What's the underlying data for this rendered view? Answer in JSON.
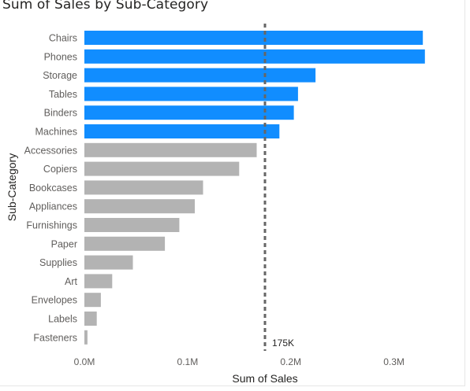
{
  "chart_data": {
    "type": "bar",
    "orientation": "horizontal",
    "title": "Sum of Sales by Sub-Category",
    "xlabel": "Sum of Sales",
    "ylabel": "Sub-Category",
    "categories": [
      "Chairs",
      "Phones",
      "Storage",
      "Tables",
      "Binders",
      "Machines",
      "Accessories",
      "Copiers",
      "Bookcases",
      "Appliances",
      "Furnishings",
      "Paper",
      "Supplies",
      "Art",
      "Envelopes",
      "Labels",
      "Fasteners"
    ],
    "values": [
      328000,
      330000,
      224000,
      207000,
      203000,
      189000,
      167000,
      150000,
      115000,
      107000,
      92000,
      78000,
      47000,
      27000,
      16000,
      12000,
      3000
    ],
    "highlight_color": "#118dff",
    "default_color": "#b3b3b3",
    "threshold": 175000,
    "threshold_label": "175K",
    "xlim": [
      0,
      350000
    ],
    "xticks": [
      0,
      100000,
      200000,
      300000
    ],
    "xtick_labels": [
      "0.0M",
      "0.1M",
      "0.2M",
      "0.3M"
    ],
    "grid": false,
    "legend": "none"
  }
}
